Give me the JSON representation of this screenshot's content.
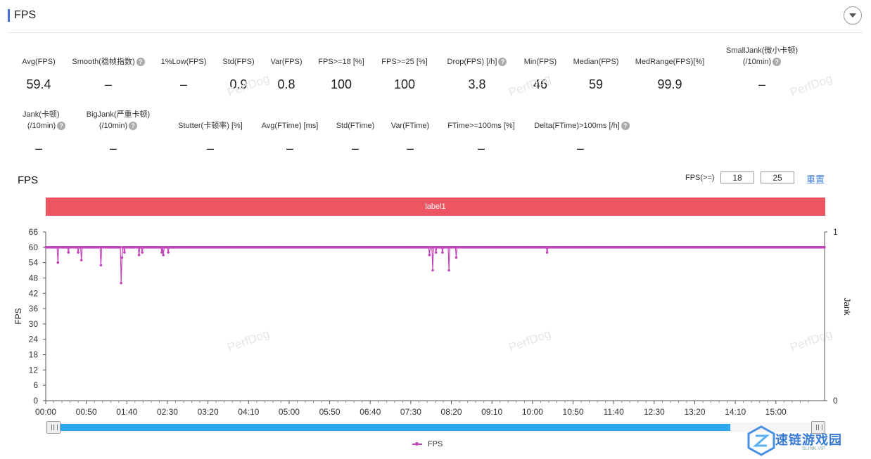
{
  "header": {
    "title": "FPS",
    "accent_color": "#4a6fd6",
    "collapse_icon": "chevron-down-icon"
  },
  "metrics_row1": [
    {
      "label": "Avg(FPS)",
      "help": false,
      "value": "59.4"
    },
    {
      "label": "Smooth(稳帧指数)",
      "help": true,
      "value": "–"
    },
    {
      "label": "1%Low(FPS)",
      "help": false,
      "value": "–"
    },
    {
      "label": "Std(FPS)",
      "help": false,
      "value": "0.9"
    },
    {
      "label": "Var(FPS)",
      "help": false,
      "value": "0.8"
    },
    {
      "label": "FPS>=18 [%]",
      "help": false,
      "value": "100"
    },
    {
      "label": "FPS>=25 [%]",
      "help": false,
      "value": "100"
    },
    {
      "label": "Drop(FPS) [/h]",
      "help": true,
      "value": "3.8"
    },
    {
      "label": "Min(FPS)",
      "help": false,
      "value": "46"
    },
    {
      "label": "Median(FPS)",
      "help": false,
      "value": "59"
    },
    {
      "label": "MedRange(FPS)[%]",
      "help": false,
      "value": "99.9"
    },
    {
      "label": "SmallJank(微小卡顿)",
      "label2": "(/10min)",
      "help": true,
      "value": "–"
    }
  ],
  "metrics_row2": [
    {
      "label": "Jank(卡顿)",
      "label2": "(/10min)",
      "help": true,
      "value": "–"
    },
    {
      "label": "BigJank(严重卡顿)",
      "label2": "(/10min)",
      "help": true,
      "value": "–"
    },
    {
      "label": "Stutter(卡顿率) [%]",
      "help": false,
      "value": "–"
    },
    {
      "label": "Avg(FTime) [ms]",
      "help": false,
      "value": "–"
    },
    {
      "label": "Std(FTime)",
      "help": false,
      "value": "–"
    },
    {
      "label": "Var(FTime)",
      "help": false,
      "value": "–"
    },
    {
      "label": "FTime>=100ms [%]",
      "help": false,
      "value": "–"
    },
    {
      "label": "Delta(FTime)>100ms [/h]",
      "help": true,
      "value": "–"
    }
  ],
  "chart_controls": {
    "title": "FPS",
    "threshold_label": "FPS(>=)",
    "threshold_1": "18",
    "threshold_2": "25",
    "reset_label": "重置"
  },
  "label_band": {
    "text": "label1",
    "color": "#ee5563"
  },
  "watermark": "PerfDog",
  "chart_data": {
    "type": "line",
    "title": "FPS",
    "xlabel": "",
    "ylabel": "FPS",
    "y2label": "Jank",
    "ylim": [
      0,
      66
    ],
    "y2lim": [
      0,
      1
    ],
    "yticks": [
      0,
      6,
      12,
      18,
      24,
      30,
      36,
      42,
      48,
      54,
      60,
      66
    ],
    "y2ticks": [
      0,
      1
    ],
    "xlim": [
      0,
      960
    ],
    "xticks": [
      "00:00",
      "00:50",
      "01:40",
      "02:30",
      "03:20",
      "04:10",
      "05:00",
      "05:50",
      "06:40",
      "07:30",
      "08:20",
      "09:10",
      "10:00",
      "10:50",
      "11:40",
      "12:30",
      "13:20",
      "14:10",
      "15:00"
    ],
    "xtick_seconds": [
      0,
      50,
      100,
      150,
      200,
      250,
      300,
      350,
      400,
      450,
      500,
      550,
      600,
      650,
      700,
      750,
      800,
      850,
      900
    ],
    "grid": false,
    "legend": "bottom-center",
    "series": [
      {
        "name": "FPS",
        "color": "#c244b9",
        "baseline": 60,
        "dips": [
          [
            15,
            54
          ],
          [
            28,
            58
          ],
          [
            40,
            58
          ],
          [
            44,
            55
          ],
          [
            68,
            53
          ],
          [
            93,
            46
          ],
          [
            94,
            56
          ],
          [
            97,
            58
          ],
          [
            115,
            57
          ],
          [
            119,
            58
          ],
          [
            143,
            58
          ],
          [
            145,
            57
          ],
          [
            151,
            58
          ],
          [
            473,
            57
          ],
          [
            477,
            51
          ],
          [
            481,
            58
          ],
          [
            489,
            58
          ],
          [
            497,
            51
          ],
          [
            506,
            56
          ],
          [
            618,
            58
          ]
        ]
      }
    ]
  },
  "scrollbar": {
    "fill_color": "#29a8ee",
    "handle_icon": "grip-icon"
  },
  "logo": {
    "text": "速链游戏园",
    "sub": "SLINK.VIP"
  }
}
